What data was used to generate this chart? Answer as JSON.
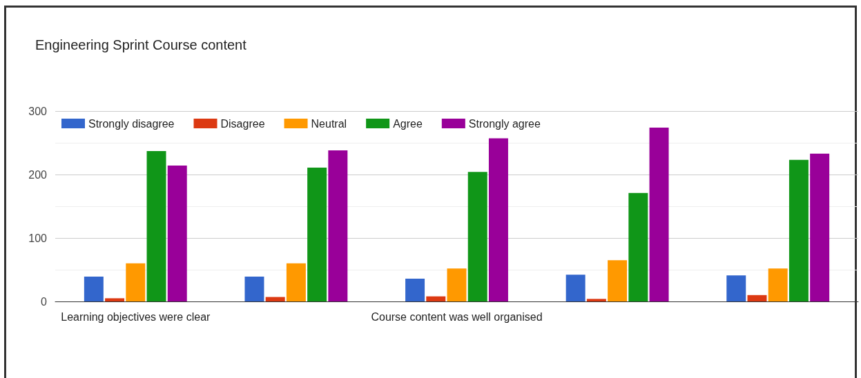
{
  "chart_data": {
    "type": "bar",
    "title": "Engineering Sprint Course content",
    "categories": [
      "Learning objectives were clear",
      null,
      "Course content was well organised",
      null,
      null
    ],
    "series": [
      {
        "name": "Strongly disagree",
        "color": "#3366cc",
        "values": [
          39,
          39,
          36,
          42,
          41
        ]
      },
      {
        "name": "Disagree",
        "color": "#dc3912",
        "values": [
          5,
          7,
          8,
          4,
          10
        ]
      },
      {
        "name": "Neutral",
        "color": "#ff9900",
        "values": [
          60,
          60,
          52,
          65,
          52
        ]
      },
      {
        "name": "Agree",
        "color": "#109618",
        "values": [
          237,
          211,
          204,
          171,
          223
        ]
      },
      {
        "name": "Strongly agree",
        "color": "#990099",
        "values": [
          214,
          238,
          257,
          274,
          233
        ]
      }
    ],
    "ylim": [
      0,
      300
    ],
    "yticks": [
      0,
      100,
      200,
      300
    ],
    "grid": "y",
    "legend": "top left"
  }
}
